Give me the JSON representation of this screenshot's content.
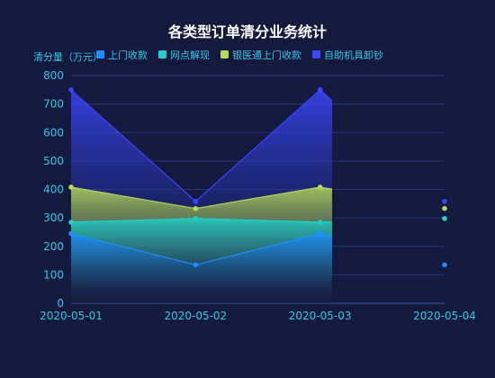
{
  "chart_data": {
    "type": "area",
    "title": "各类型订单清分业务统计",
    "ylabel": "清分量（万元）",
    "xlabel": "",
    "categories": [
      "2020-05-01",
      "2020-05-02",
      "2020-05-03",
      "2020-05-04"
    ],
    "ylim": [
      0,
      800
    ],
    "yticks": [
      0,
      100,
      200,
      300,
      400,
      500,
      600,
      700,
      800
    ],
    "grid": true,
    "legend_position": "top",
    "series": [
      {
        "name": "上门收款",
        "color": "#1e90ff",
        "values": [
          245,
          135,
          245,
          135
        ]
      },
      {
        "name": "网点解现",
        "color": "#1fd1c9",
        "values": [
          285,
          298,
          285,
          298
        ]
      },
      {
        "name": "银医通上门收款",
        "color": "#b5d95a",
        "values": [
          408,
          333,
          408,
          333
        ]
      },
      {
        "name": "自助机具卸钞",
        "color": "#3a46ff",
        "values": [
          750,
          358,
          750,
          358
        ]
      }
    ]
  }
}
